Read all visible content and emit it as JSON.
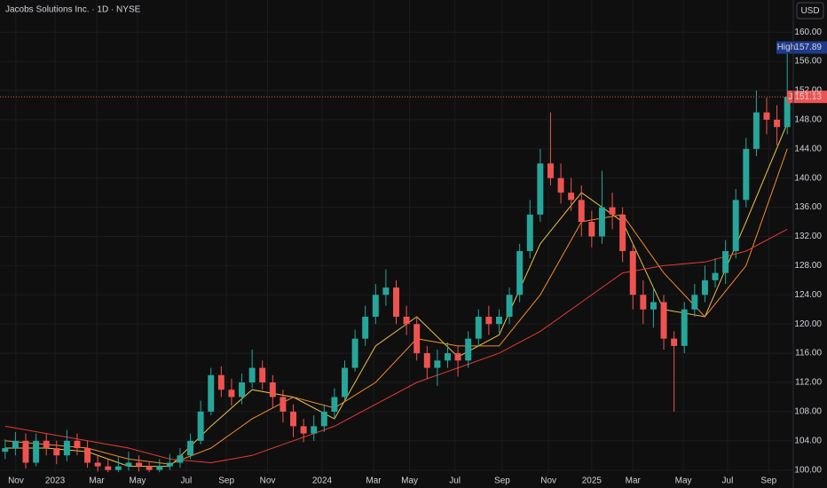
{
  "chart_data": {
    "type": "candlestick",
    "title": "Jacobs Solutions Inc. · 1D · NYSE",
    "currency": "USD",
    "ticker": "J",
    "high_label": "High",
    "up_color": "#26a69a",
    "down_color": "#ef5350",
    "grid": true,
    "xlim": [
      -0.5,
      76.5
    ],
    "ylim": [
      99.6,
      164.4
    ],
    "yticks": [
      {
        "value": 100,
        "label": "100.00"
      },
      {
        "value": 104,
        "label": "104.00"
      },
      {
        "value": 108,
        "label": "108.00"
      },
      {
        "value": 112,
        "label": "112.00"
      },
      {
        "value": 116,
        "label": "116.00"
      },
      {
        "value": 120,
        "label": "120.00"
      },
      {
        "value": 124,
        "label": "124.00"
      },
      {
        "value": 128,
        "label": "128.00"
      },
      {
        "value": 132,
        "label": "132.00"
      },
      {
        "value": 136,
        "label": "136.00"
      },
      {
        "value": 140,
        "label": "140.00"
      },
      {
        "value": 144,
        "label": "144.00"
      },
      {
        "value": 148,
        "label": "148.00"
      },
      {
        "value": 152,
        "label": "152.00"
      },
      {
        "value": 156,
        "label": "156.00"
      },
      {
        "value": 160,
        "label": "160.00"
      }
    ],
    "xticks": [
      {
        "value": 1.05,
        "label": "Nov"
      },
      {
        "value": 4.85,
        "label": "2023"
      },
      {
        "value": 8.9,
        "label": "Mar"
      },
      {
        "value": 12.86,
        "label": "May"
      },
      {
        "value": 17.6,
        "label": "Jul"
      },
      {
        "value": 21.5,
        "label": "Sep"
      },
      {
        "value": 25.5,
        "label": "Nov"
      },
      {
        "value": 30.8,
        "label": "2024"
      },
      {
        "value": 35.8,
        "label": "Mar"
      },
      {
        "value": 39.3,
        "label": "May"
      },
      {
        "value": 43.7,
        "label": "Jul"
      },
      {
        "value": 48.3,
        "label": "Sep"
      },
      {
        "value": 52.8,
        "label": "Nov"
      },
      {
        "value": 57,
        "label": "2025"
      },
      {
        "value": 61,
        "label": "Mar"
      },
      {
        "value": 65.9,
        "label": "May"
      },
      {
        "value": 70.2,
        "label": "Jul"
      },
      {
        "value": 74.2,
        "label": "Sep"
      }
    ],
    "open": [
      102.5,
      103,
      104,
      101,
      104,
      103,
      102,
      104,
      103,
      101,
      100.5,
      100,
      100.5,
      101,
      100.5,
      100,
      100.5,
      101,
      102,
      104,
      108,
      113,
      111,
      110,
      112,
      114,
      112,
      110,
      108,
      106,
      105,
      106,
      108,
      110,
      114,
      118,
      121,
      124,
      125,
      121,
      120,
      116,
      114,
      115,
      116,
      115,
      118,
      121,
      120,
      121,
      124,
      130,
      135,
      142,
      140,
      138,
      137,
      134,
      132,
      136,
      135,
      130,
      124,
      122,
      123,
      118,
      117,
      122,
      124,
      126,
      127,
      130,
      137,
      144,
      149,
      148,
      147
    ],
    "high": [
      104.2,
      105.2,
      105,
      105,
      105,
      104,
      105.5,
      105,
      104,
      102,
      101.5,
      101.8,
      102.5,
      102,
      101.2,
      101.5,
      102.2,
      103,
      105,
      109.5,
      114,
      114.2,
      112.5,
      113.2,
      116.5,
      115,
      113,
      111,
      109,
      107,
      107.5,
      109,
      111.2,
      115,
      119.2,
      122.5,
      125.5,
      127.5,
      126,
      122.5,
      121,
      117,
      116.5,
      117.5,
      117,
      119,
      122,
      122.5,
      122,
      125,
      131,
      137,
      144,
      149,
      142,
      140,
      139,
      135.5,
      141,
      138,
      136,
      131,
      126,
      125,
      124,
      119,
      123,
      125.5,
      128,
      129,
      131.5,
      138.5,
      145.5,
      152,
      151,
      150,
      157.89
    ],
    "low": [
      101.5,
      102,
      100.2,
      100.5,
      102,
      100.8,
      101.2,
      102,
      100.3,
      99.8,
      99.7,
      99.7,
      99.9,
      99.8,
      99.7,
      99.7,
      100,
      100.3,
      101.5,
      103.5,
      107.5,
      110,
      108.8,
      109,
      111.2,
      111,
      108.5,
      106.5,
      104.5,
      103.8,
      104,
      105.2,
      107,
      109.5,
      113.5,
      117,
      120,
      122.5,
      120,
      118.5,
      115,
      112.5,
      111.5,
      114,
      112.8,
      114,
      117,
      118.5,
      118.8,
      120,
      123,
      129,
      134,
      139,
      136.5,
      135.5,
      132,
      130.5,
      131,
      133,
      128.5,
      122,
      120,
      119.5,
      116.5,
      108,
      116,
      121,
      123,
      125,
      125.5,
      129,
      136,
      143,
      146,
      144.5,
      146
    ],
    "close": [
      103,
      104,
      101,
      104,
      103,
      102,
      104,
      103,
      101,
      100.5,
      100,
      100.5,
      101,
      100.5,
      100,
      100.5,
      101,
      102,
      104,
      108,
      113,
      111,
      110,
      112,
      114,
      112,
      110,
      108,
      106,
      105,
      106,
      108,
      110,
      114,
      118,
      121,
      124,
      125,
      121,
      120,
      116,
      114,
      115,
      116,
      115,
      118,
      121,
      120,
      121,
      124,
      130,
      135,
      142,
      140,
      138,
      137,
      134,
      132,
      136,
      135,
      130,
      124,
      122,
      123,
      118,
      117,
      122,
      124,
      126,
      127,
      130,
      137,
      144,
      149,
      148,
      147,
      151.13
    ],
    "lines": [
      {
        "color": "#e9c04a",
        "x": [
          0,
          4,
          8,
          12,
          16,
          20,
          24,
          28,
          32,
          36,
          40,
          44,
          48,
          52,
          56,
          60,
          64,
          68,
          72,
          76
        ],
        "values": [
          103,
          103,
          102.5,
          100.5,
          100.5,
          106,
          111,
          110,
          107,
          117,
          121,
          115.5,
          118.5,
          131,
          138,
          134,
          122,
          121,
          134,
          147.5
        ]
      },
      {
        "color": "#f08c2e",
        "x": [
          0,
          4,
          8,
          12,
          16,
          20,
          24,
          28,
          32,
          36,
          40,
          44,
          48,
          52,
          56,
          60,
          64,
          68,
          72,
          76
        ],
        "values": [
          104,
          103.5,
          103,
          101.5,
          100.8,
          103,
          107,
          110,
          108.5,
          112,
          118,
          117,
          117,
          124,
          134,
          135,
          127,
          121,
          128,
          144
        ]
      },
      {
        "color": "#e53935",
        "x": [
          0,
          4,
          8,
          12,
          16,
          20,
          24,
          28,
          32,
          36,
          40,
          44,
          48,
          52,
          56,
          60,
          64,
          68,
          72,
          76
        ],
        "values": [
          106,
          105,
          104,
          103,
          101.5,
          101,
          102,
          104,
          106,
          109,
          112,
          114,
          116,
          119,
          123,
          127,
          128,
          128.5,
          130,
          133
        ]
      }
    ]
  }
}
